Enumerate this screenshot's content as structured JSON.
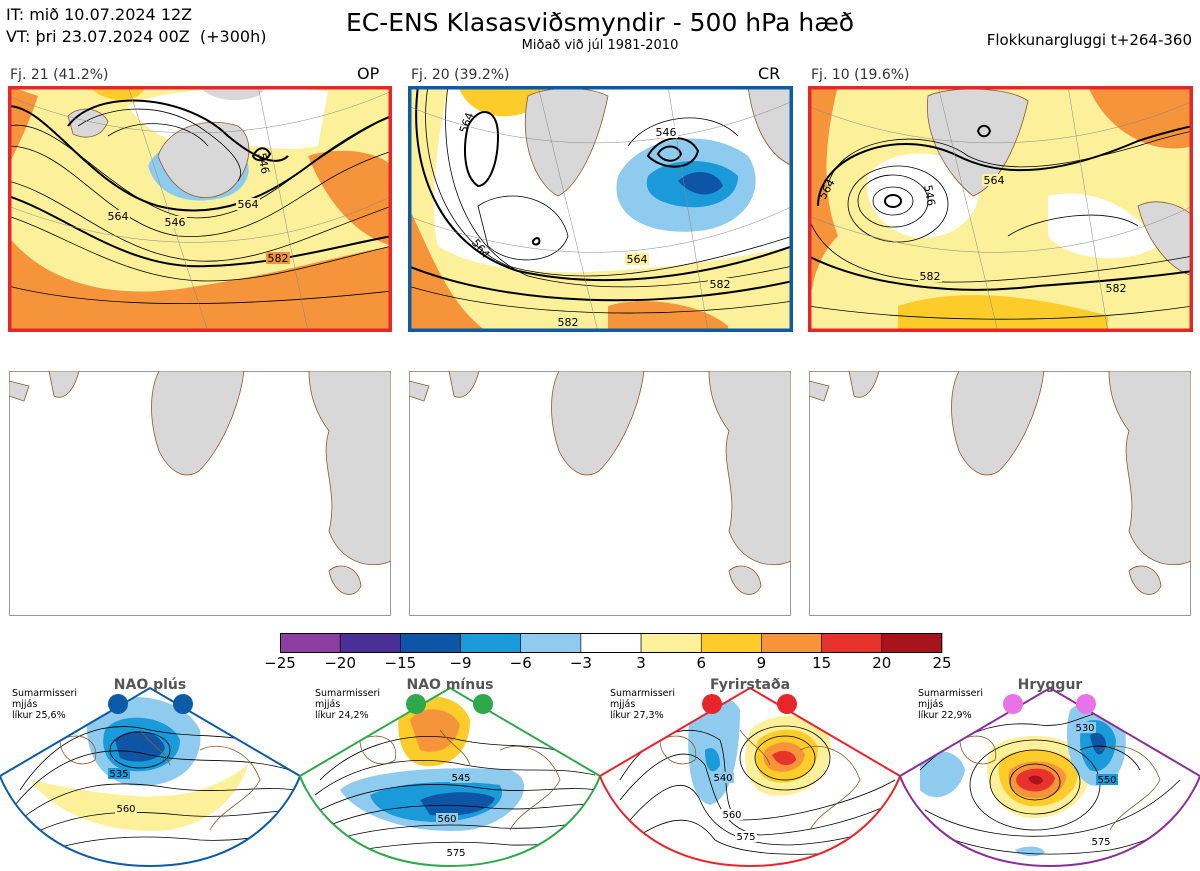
{
  "header": {
    "init_line": "IT: mið 10.07.2024 12Z",
    "valid_line": "VT: þri 23.07.2024 00Z  (+300h)",
    "title": "EC-ENS Klasasviðsmyndir - 500 hPa hæð",
    "subtitle": "Miðað við júl 1981-2010",
    "window": "Flokkunargluggi t+264-360"
  },
  "colors": {
    "op_border": "#e8252a",
    "cr_border": "#0d5aa7",
    "nao_plus": "#0d5aa7",
    "nao_minus": "#2ea84a",
    "blocking": "#e8252a",
    "ridge": "#8a2f9a",
    "ridge_dot": "#e873e8"
  },
  "clusters": [
    {
      "label": "Fj. 21 (41.2%)",
      "tag": "OP",
      "contours": [
        "564",
        "546",
        "582",
        "564",
        "546"
      ]
    },
    {
      "label": "Fj. 20 (39.2%)",
      "tag": "CR",
      "contours": [
        "546",
        "564",
        "582",
        "564",
        "564",
        "582"
      ]
    },
    {
      "label": "Fj. 10 (19.6%)",
      "tag": "",
      "contours": [
        "546",
        "564",
        "582",
        "582",
        "564"
      ]
    }
  ],
  "colorbar": {
    "ticks": [
      "−25",
      "−20",
      "−15",
      "−9",
      "−6",
      "−3",
      "3",
      "6",
      "9",
      "15",
      "20",
      "25"
    ],
    "colors": [
      "#8b3fa0",
      "#4a2f96",
      "#0e56a5",
      "#1a9ad8",
      "#8fcbef",
      "#ffffff",
      "#fdf09a",
      "#fccd2a",
      "#f5943a",
      "#e8322c",
      "#a8141c"
    ]
  },
  "regimes": [
    {
      "name": "NAO plús",
      "note_1": "Sumarmisseri",
      "note_2": "mjjás",
      "note_3": "líkur 25,6%",
      "contours": [
        "535",
        "560"
      ]
    },
    {
      "name": "NAO mínus",
      "note_1": "Sumarmisseri",
      "note_2": "mjjás",
      "note_3": "líkur 24,2%",
      "contours": [
        "545",
        "560",
        "575"
      ]
    },
    {
      "name": "Fyrirstaða",
      "note_1": "Sumarmisseri",
      "note_2": "mjjás",
      "note_3": "líkur 27,3%",
      "contours": [
        "540",
        "560",
        "575"
      ]
    },
    {
      "name": "Hryggur",
      "note_1": "Sumarmisseri",
      "note_2": "mjjás",
      "note_3": "líkur 22,9%",
      "contours": [
        "530",
        "550",
        "575"
      ]
    }
  ],
  "chart_data": {
    "type": "heatmap",
    "title": "EC-ENS Klasasviðsmyndir - 500 hPa hæð",
    "variable": "500 hPa height anomaly (dam) with height contours",
    "colorbar_range": [
      -25,
      25
    ],
    "colorbar_levels": [
      -25,
      -20,
      -15,
      -9,
      -6,
      -3,
      3,
      6,
      9,
      15,
      20,
      25
    ],
    "panels": [
      {
        "name": "Fj. 21",
        "share_pct": 41.2,
        "tag": "OP",
        "contour_labels": [
          564,
          546,
          582
        ]
      },
      {
        "name": "Fj. 20",
        "share_pct": 39.2,
        "tag": "CR",
        "contour_labels": [
          546,
          564,
          582
        ]
      },
      {
        "name": "Fj. 10",
        "share_pct": 19.6,
        "tag": "",
        "contour_labels": [
          546,
          564,
          582
        ]
      }
    ],
    "regimes": [
      {
        "name": "NAO plús",
        "probability_pct": 25.6
      },
      {
        "name": "NAO mínus",
        "probability_pct": 24.2
      },
      {
        "name": "Fyrirstaða",
        "probability_pct": 27.3
      },
      {
        "name": "Hryggur",
        "probability_pct": 22.9
      }
    ]
  }
}
